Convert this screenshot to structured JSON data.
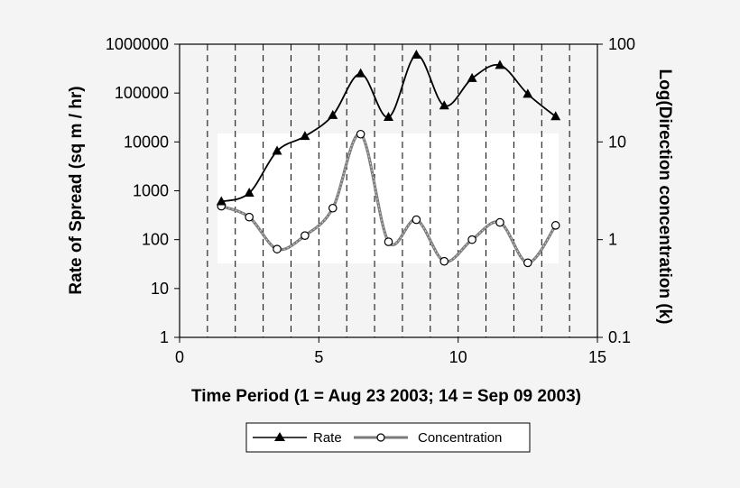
{
  "chart_data": {
    "type": "line",
    "title": "",
    "xlabel": "Time Period (1 = Aug 23 2003; 14 = Sep 09 2003)",
    "ylabel_left": "Rate of Spread (sq m / hr)",
    "ylabel_right": "Log(Direction concentration (k)",
    "xlim": [
      0,
      15
    ],
    "ylim_left": [
      1,
      1000000
    ],
    "ylim_right": [
      0.1,
      100
    ],
    "yscale": "log",
    "grid": "dashed vertical lines at x = 1..14",
    "x_ticks": [
      "0",
      "5",
      "10",
      "15"
    ],
    "y_ticks_left": [
      "1",
      "10",
      "100",
      "1000",
      "10000",
      "100000",
      "1000000"
    ],
    "y_ticks_right": [
      "0.1",
      "1",
      "10",
      "100"
    ],
    "legend_position": "bottom-center",
    "series": [
      {
        "name": "Rate",
        "axis": "left",
        "marker": "triangle",
        "color": "#000000",
        "x": [
          1.5,
          2.5,
          3.5,
          4.5,
          5.5,
          6.5,
          7.5,
          8.5,
          9.5,
          10.5,
          11.5,
          12.5,
          13.5
        ],
        "values": [
          600,
          900,
          6500,
          13000,
          35000,
          250000,
          32000,
          600000,
          55000,
          200000,
          370000,
          95000,
          33000
        ]
      },
      {
        "name": "Concentration",
        "axis": "right",
        "marker": "circle",
        "color": "#7a7a7a",
        "x": [
          1.5,
          2.5,
          3.5,
          4.5,
          5.5,
          6.5,
          7.5,
          8.5,
          9.5,
          10.5,
          11.5,
          12.5,
          13.5
        ],
        "values": [
          2.2,
          1.7,
          0.8,
          1.1,
          2.1,
          12.0,
          0.95,
          1.6,
          0.6,
          1.0,
          1.5,
          0.58,
          1.4
        ]
      }
    ]
  }
}
